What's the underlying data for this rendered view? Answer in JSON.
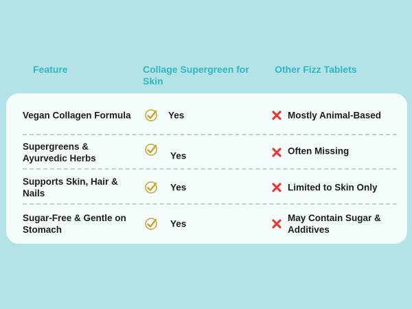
{
  "headers": {
    "feature": "Feature",
    "collage": "Collage Supergreen for Skin",
    "other": "Other Fizz Tablets"
  },
  "rows": [
    {
      "feature": "Vegan Collagen Formula",
      "collage": "Yes",
      "other": "Mostly Animal-Based"
    },
    {
      "feature": "Supergreens & Ayurvedic Herbs",
      "collage": "Yes",
      "other": "Often Missing"
    },
    {
      "feature": "Supports Skin, Hair & Nails",
      "collage": "Yes",
      "other": "Limited to Skin Only"
    },
    {
      "feature": "Sugar-Free & Gentle on Stomach",
      "collage": "Yes",
      "other": "May Contain Sugar & Additives"
    }
  ],
  "icons": {
    "yes": "gold-checkmark-icon",
    "no": "red-cross-icon"
  },
  "colors": {
    "background": "#b3e2e7",
    "header_text": "#2fb6bf",
    "card": "#f4fbfb",
    "check_gold": "#c9a227",
    "cross_red": "#e53935"
  }
}
